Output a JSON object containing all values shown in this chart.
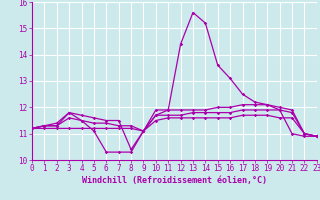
{
  "xlabel": "Windchill (Refroidissement éolien,°C)",
  "xlim": [
    0,
    23
  ],
  "ylim": [
    10,
    16
  ],
  "background_color": "#cce9ec",
  "line_color": "#aa00aa",
  "grid_color": "#ffffff",
  "series": [
    {
      "x": [
        0,
        1,
        2,
        3,
        4,
        5,
        6,
        7,
        8,
        9,
        10,
        11,
        12,
        13,
        14,
        15,
        16,
        17,
        18,
        19,
        20,
        21,
        22,
        23
      ],
      "y": [
        11.2,
        11.3,
        11.3,
        11.8,
        11.5,
        11.1,
        10.3,
        10.3,
        10.3,
        11.1,
        11.9,
        11.9,
        14.4,
        15.6,
        15.2,
        13.6,
        13.1,
        12.5,
        12.2,
        12.1,
        11.9,
        11.0,
        10.9,
        10.9
      ]
    },
    {
      "x": [
        0,
        1,
        2,
        3,
        4,
        5,
        6,
        7,
        8,
        9,
        10,
        11,
        12,
        13,
        14,
        15,
        16,
        17,
        18,
        19,
        20,
        21,
        22,
        23
      ],
      "y": [
        11.2,
        11.3,
        11.4,
        11.8,
        11.7,
        11.6,
        11.5,
        11.5,
        10.4,
        11.1,
        11.7,
        11.9,
        11.9,
        11.9,
        11.9,
        12.0,
        12.0,
        12.1,
        12.1,
        12.1,
        12.0,
        11.9,
        11.0,
        10.9
      ]
    },
    {
      "x": [
        0,
        1,
        2,
        3,
        4,
        5,
        6,
        7,
        8,
        9,
        10,
        11,
        12,
        13,
        14,
        15,
        16,
        17,
        18,
        19,
        20,
        21,
        22,
        23
      ],
      "y": [
        11.2,
        11.3,
        11.3,
        11.6,
        11.5,
        11.4,
        11.4,
        11.3,
        11.3,
        11.1,
        11.7,
        11.7,
        11.7,
        11.8,
        11.8,
        11.8,
        11.8,
        11.9,
        11.9,
        11.9,
        11.9,
        11.8,
        11.0,
        10.9
      ]
    },
    {
      "x": [
        0,
        1,
        2,
        3,
        4,
        5,
        6,
        7,
        8,
        9,
        10,
        11,
        12,
        13,
        14,
        15,
        16,
        17,
        18,
        19,
        20,
        21,
        22,
        23
      ],
      "y": [
        11.2,
        11.2,
        11.2,
        11.2,
        11.2,
        11.2,
        11.2,
        11.2,
        11.2,
        11.1,
        11.5,
        11.6,
        11.6,
        11.6,
        11.6,
        11.6,
        11.6,
        11.7,
        11.7,
        11.7,
        11.6,
        11.6,
        11.0,
        10.9
      ]
    }
  ]
}
